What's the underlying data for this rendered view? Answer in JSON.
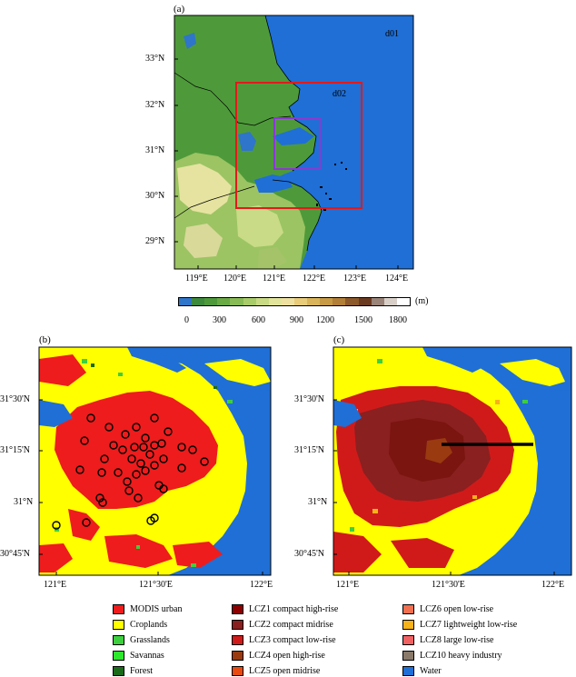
{
  "panel_a": {
    "label": "(a)",
    "domain_outer": "d01",
    "domain_inner": "d02",
    "lat_ticks": [
      "33°N",
      "32°N",
      "31°N",
      "30°N",
      "29°N"
    ],
    "lon_ticks": [
      "119°E",
      "120°E",
      "121°E",
      "122°E",
      "123°E",
      "124°E"
    ],
    "colorbar": {
      "unit": "(m)",
      "ticks": [
        "0",
        "300",
        "600",
        "900",
        "1200",
        "1500",
        "1800"
      ],
      "colors": [
        "#2f75c9",
        "#3d8a3d",
        "#4e9a3a",
        "#6aaa45",
        "#88bb55",
        "#a9cc6a",
        "#c8da84",
        "#e2e49c",
        "#eee0a0",
        "#e8cc7a",
        "#d9b45a",
        "#c79a46",
        "#b27f38",
        "#8c5a2a",
        "#6a3b20",
        "#9a8378",
        "#d8d0c8",
        "#ffffff"
      ]
    }
  },
  "panel_b": {
    "label": "(b)",
    "lat_ticks": [
      "31°30'N",
      "31°15'N",
      "31°N",
      "30°45'N"
    ],
    "lon_ticks": [
      "121°E",
      "121°30'E",
      "122°E"
    ]
  },
  "panel_c": {
    "label": "(c)",
    "lat_ticks": [
      "31°30'N",
      "31°15'N",
      "31°N",
      "30°45'N"
    ],
    "lon_ticks": [
      "121°E",
      "121°30'E",
      "122°E"
    ]
  },
  "legend": {
    "col1": [
      {
        "label": "MODIS urban",
        "color": "#ee1c1c"
      },
      {
        "label": "Croplands",
        "color": "#ffff00"
      },
      {
        "label": "Grasslands",
        "color": "#3ecf3e"
      },
      {
        "label": "Savannas",
        "color": "#2ee82e"
      },
      {
        "label": "Forest",
        "color": "#1a6a1a"
      }
    ],
    "col2": [
      {
        "label": "LCZ1 compact high-rise",
        "color": "#8c0000"
      },
      {
        "label": "LCZ2 compact midrise",
        "color": "#8a2020"
      },
      {
        "label": "LCZ3 compact low-rise",
        "color": "#d01a1a"
      },
      {
        "label": "LCZ4 open high-rise",
        "color": "#9a3a10"
      },
      {
        "label": "LCZ5 open midrise",
        "color": "#e84a10"
      }
    ],
    "col3": [
      {
        "label": "LCZ6 open low-rise",
        "color": "#f07050"
      },
      {
        "label": "LCZ7 lightweight low-rise",
        "color": "#f6b21a"
      },
      {
        "label": "LCZ8 large low-rise",
        "color": "#f06262"
      },
      {
        "label": "LCZ10 heavy industry",
        "color": "#8a7a6a"
      },
      {
        "label": "Water",
        "color": "#1f6fd6"
      }
    ]
  }
}
